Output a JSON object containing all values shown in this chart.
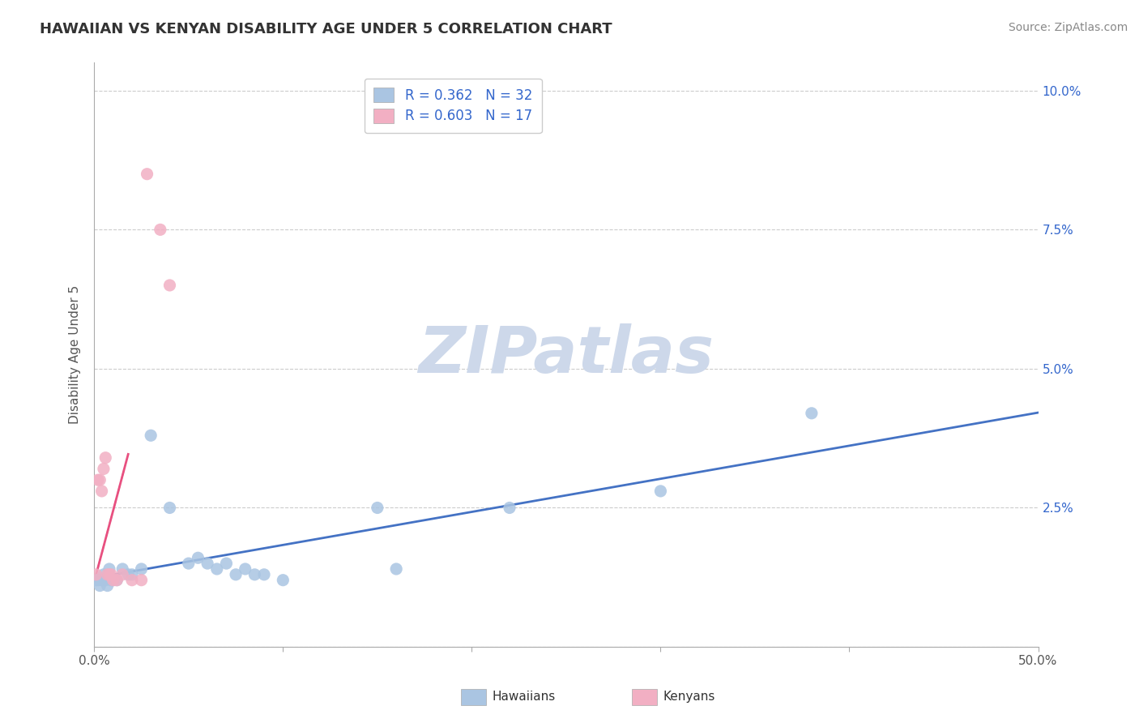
{
  "title": "HAWAIIAN VS KENYAN DISABILITY AGE UNDER 5 CORRELATION CHART",
  "source": "Source: ZipAtlas.com",
  "ylabel_label": "Disability Age Under 5",
  "xlim": [
    0.0,
    0.5
  ],
  "ylim": [
    0.0,
    0.105
  ],
  "xticks": [
    0.0,
    0.1,
    0.2,
    0.3,
    0.4,
    0.5
  ],
  "xticklabels": [
    "0.0%",
    "",
    "",
    "",
    "",
    "50.0%"
  ],
  "yticks": [
    0.0,
    0.025,
    0.05,
    0.075,
    0.1
  ],
  "yticklabels_right": [
    "",
    "2.5%",
    "5.0%",
    "7.5%",
    "10.0%"
  ],
  "hawaiian_R": "0.362",
  "hawaiian_N": "32",
  "kenyan_R": "0.603",
  "kenyan_N": "17",
  "hawaiian_color": "#aac5e2",
  "kenyan_color": "#f2afc3",
  "hawaiian_line_color": "#4472c4",
  "kenyan_line_color": "#e85080",
  "grid_color": "#cccccc",
  "legend_text_color": "#3366cc",
  "watermark_color": "#cdd8ea",
  "hawaiian_x": [
    0.001,
    0.002,
    0.003,
    0.004,
    0.005,
    0.006,
    0.007,
    0.008,
    0.009,
    0.01,
    0.012,
    0.015,
    0.018,
    0.02,
    0.025,
    0.03,
    0.04,
    0.05,
    0.055,
    0.06,
    0.065,
    0.07,
    0.075,
    0.08,
    0.085,
    0.09,
    0.1,
    0.15,
    0.16,
    0.22,
    0.3,
    0.38
  ],
  "hawaiian_y": [
    0.012,
    0.012,
    0.011,
    0.012,
    0.013,
    0.012,
    0.011,
    0.014,
    0.012,
    0.012,
    0.012,
    0.014,
    0.013,
    0.013,
    0.014,
    0.038,
    0.025,
    0.015,
    0.016,
    0.015,
    0.014,
    0.015,
    0.013,
    0.014,
    0.013,
    0.013,
    0.012,
    0.025,
    0.014,
    0.025,
    0.028,
    0.042
  ],
  "kenyan_x": [
    0.001,
    0.002,
    0.003,
    0.004,
    0.005,
    0.006,
    0.007,
    0.008,
    0.009,
    0.01,
    0.012,
    0.015,
    0.02,
    0.025,
    0.028,
    0.035,
    0.04
  ],
  "kenyan_y": [
    0.013,
    0.03,
    0.03,
    0.028,
    0.032,
    0.034,
    0.013,
    0.013,
    0.013,
    0.012,
    0.012,
    0.013,
    0.012,
    0.012,
    0.085,
    0.075,
    0.065
  ],
  "hawaiian_line_x": [
    0.0,
    0.5
  ],
  "kenyan_line_x_start": 0.0,
  "kenyan_line_x_end": 0.05
}
